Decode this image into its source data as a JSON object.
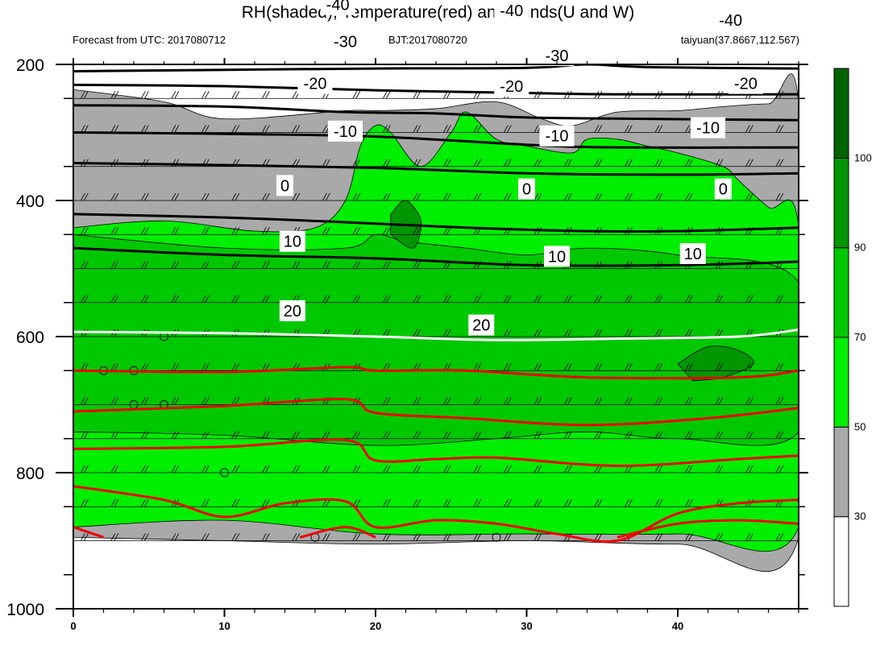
{
  "title": "RH(shaded), Temperature(red) and Winds(U and W)",
  "subtitle_left": "Forecast from UTC: 2017080712",
  "subtitle_center": "BJT:2017080720",
  "subtitle_right": "taiyuan(37.8667,112.567)",
  "chart_data": {
    "type": "heatmap",
    "description_axes": {
      "x": {
        "ticks": [
          0,
          10,
          20,
          30,
          40
        ],
        "range": [
          0,
          48
        ]
      },
      "y": {
        "ticks": [
          200,
          400,
          600,
          800,
          1000
        ],
        "range": [
          200,
          1000
        ],
        "inverted": true
      }
    },
    "colorbar": {
      "levels": [
        30,
        50,
        70,
        90,
        100
      ],
      "colors": [
        "#ffffff",
        "#a9a9a9",
        "#00ee00",
        "#00c800",
        "#009600",
        "#006400"
      ]
    },
    "rh_regions": [
      {
        "level": "30-50",
        "color": "#a9a9a9",
        "points": [
          [
            0,
            237
          ],
          [
            6,
            255
          ],
          [
            10,
            280
          ],
          [
            18,
            268
          ],
          [
            20,
            268
          ],
          [
            24,
            265
          ],
          [
            28,
            255
          ],
          [
            31,
            280
          ],
          [
            33,
            290
          ],
          [
            36,
            270
          ],
          [
            40,
            268
          ],
          [
            43,
            262
          ],
          [
            46,
            258
          ],
          [
            48,
            262
          ],
          [
            48,
            895
          ],
          [
            40,
            905
          ],
          [
            30,
            900
          ],
          [
            20,
            905
          ],
          [
            10,
            900
          ],
          [
            0,
            895
          ]
        ]
      },
      {
        "level": "50-70",
        "color": "#00ee00",
        "points": [
          [
            0,
            440
          ],
          [
            6,
            430
          ],
          [
            12,
            445
          ],
          [
            16,
            440
          ],
          [
            18,
            400
          ],
          [
            19,
            320
          ],
          [
            20,
            290
          ],
          [
            21,
            300
          ],
          [
            23,
            350
          ],
          [
            25,
            300
          ],
          [
            26,
            270
          ],
          [
            28,
            310
          ],
          [
            30,
            320
          ],
          [
            33,
            330
          ],
          [
            34,
            310
          ],
          [
            36,
            310
          ],
          [
            38,
            320
          ],
          [
            40,
            330
          ],
          [
            43,
            350
          ],
          [
            44,
            370
          ],
          [
            46,
            410
          ],
          [
            48,
            440
          ],
          [
            48,
            880
          ],
          [
            40,
            890
          ],
          [
            30,
            890
          ],
          [
            20,
            890
          ],
          [
            10,
            870
          ],
          [
            0,
            880
          ]
        ]
      },
      {
        "level": "70-90",
        "color": "#00c800",
        "points": [
          [
            0,
            450
          ],
          [
            10,
            470
          ],
          [
            18,
            470
          ],
          [
            20,
            450
          ],
          [
            22,
            460
          ],
          [
            26,
            470
          ],
          [
            30,
            480
          ],
          [
            34,
            470
          ],
          [
            40,
            480
          ],
          [
            48,
            520
          ],
          [
            48,
            740
          ],
          [
            40,
            750
          ],
          [
            34,
            740
          ],
          [
            28,
            750
          ],
          [
            20,
            760
          ],
          [
            10,
            745
          ],
          [
            0,
            740
          ]
        ]
      },
      {
        "level": "90-100",
        "color": "#009600",
        "points": [
          [
            21,
            420
          ],
          [
            22,
            400
          ],
          [
            23,
            430
          ],
          [
            22.5,
            470
          ],
          [
            21,
            450
          ]
        ]
      },
      {
        "level": "90-100",
        "color": "#009600",
        "points": [
          [
            40,
            640
          ],
          [
            42,
            615
          ],
          [
            44,
            620
          ],
          [
            45,
            640
          ],
          [
            43,
            660
          ],
          [
            41,
            665
          ]
        ]
      }
    ],
    "contours": [
      {
        "value": -40,
        "color": "#000000",
        "label_text": "-40",
        "points": [
          [
            0,
            210
          ],
          [
            10,
            208
          ],
          [
            20,
            206
          ],
          [
            30,
            205
          ],
          [
            34,
            200
          ],
          [
            38,
            204
          ],
          [
            48,
            206
          ]
        ],
        "labels_at": [
          [
            17.5,
            112
          ]
        ]
      },
      {
        "value": -40,
        "color": "#000000",
        "label_text": "-40",
        "points": [
          [
            0,
            230
          ],
          [
            10,
            232
          ],
          [
            20,
            238
          ],
          [
            30,
            242
          ],
          [
            36,
            244
          ],
          [
            48,
            244
          ]
        ],
        "labels_at": [
          [
            29,
            121
          ],
          [
            43.5,
            135
          ]
        ]
      },
      {
        "value": -30,
        "color": "#000000",
        "label_text": "-30",
        "points": [
          [
            0,
            260
          ],
          [
            10,
            262
          ],
          [
            18,
            270
          ],
          [
            24,
            272
          ],
          [
            30,
            278
          ],
          [
            38,
            280
          ],
          [
            48,
            282
          ]
        ],
        "labels_at": [
          [
            18,
            166
          ],
          [
            32,
            187
          ]
        ]
      },
      {
        "value": -30,
        "color": "#000000",
        "label_text": "-30",
        "points": [
          [
            0,
            300
          ],
          [
            10,
            302
          ],
          [
            20,
            306
          ],
          [
            30,
            318
          ],
          [
            36,
            322
          ],
          [
            48,
            322
          ]
        ],
        "labels_at": []
      },
      {
        "value": -20,
        "color": "#000000",
        "label_text": "-20",
        "points": [
          [
            0,
            345
          ],
          [
            10,
            348
          ],
          [
            20,
            352
          ],
          [
            30,
            360
          ],
          [
            40,
            362
          ],
          [
            48,
            360
          ]
        ],
        "labels_at": [
          [
            16,
            228
          ],
          [
            29,
            232
          ],
          [
            44.5,
            228
          ]
        ]
      },
      {
        "value": -10,
        "color": "#000000",
        "label_text": "-10",
        "points": [
          [
            0,
            420
          ],
          [
            10,
            425
          ],
          [
            18,
            432
          ],
          [
            26,
            440
          ],
          [
            34,
            445
          ],
          [
            40,
            445
          ],
          [
            48,
            440
          ]
        ],
        "labels_at": [
          [
            18,
            298
          ],
          [
            32,
            305
          ],
          [
            42,
            293
          ]
        ]
      },
      {
        "value": -10,
        "color": "#000000",
        "label_text": "-10",
        "points": [
          [
            0,
            470
          ],
          [
            10,
            480
          ],
          [
            20,
            485
          ],
          [
            30,
            495
          ],
          [
            40,
            495
          ],
          [
            48,
            490
          ]
        ],
        "labels_at": []
      },
      {
        "value": 0,
        "color": "#ffffff",
        "label_text": "0",
        "points": [
          [
            0,
            593
          ],
          [
            10,
            595
          ],
          [
            20,
            600
          ],
          [
            28,
            605
          ],
          [
            36,
            603
          ],
          [
            44,
            600
          ],
          [
            48,
            590
          ]
        ],
        "labels_at": [
          [
            14,
            378
          ],
          [
            30,
            383
          ],
          [
            43,
            383
          ]
        ]
      },
      {
        "value": 10,
        "color": "#ee0000",
        "label_text": "10",
        "points": [
          [
            0,
            650
          ],
          [
            10,
            652
          ],
          [
            18,
            645
          ],
          [
            20,
            650
          ],
          [
            26,
            650
          ],
          [
            34,
            660
          ],
          [
            44,
            660
          ],
          [
            48,
            650
          ]
        ],
        "labels_at": []
      },
      {
        "value": 10,
        "color": "#ee0000",
        "label_text": "10",
        "points": [
          [
            0,
            710
          ],
          [
            10,
            702
          ],
          [
            18,
            692
          ],
          [
            20,
            712
          ],
          [
            26,
            720
          ],
          [
            34,
            730
          ],
          [
            42,
            720
          ],
          [
            48,
            705
          ]
        ],
        "labels_at": [
          [
            14.5,
            460
          ],
          [
            32,
            482
          ],
          [
            41,
            478
          ]
        ]
      },
      {
        "value": 10,
        "color": "#ee0000",
        "label_text": "10",
        "points": [
          [
            0,
            765
          ],
          [
            10,
            762
          ],
          [
            18,
            752
          ],
          [
            20,
            782
          ],
          [
            24,
            780
          ],
          [
            28,
            778
          ],
          [
            36,
            790
          ],
          [
            44,
            780
          ],
          [
            48,
            775
          ]
        ],
        "labels_at": []
      },
      {
        "value": 20,
        "color": "#ee0000",
        "label_text": "20",
        "points": [
          [
            0,
            820
          ],
          [
            6,
            840
          ],
          [
            10,
            865
          ],
          [
            14,
            845
          ],
          [
            18,
            842
          ],
          [
            20,
            880
          ],
          [
            24,
            870
          ],
          [
            28,
            875
          ],
          [
            32,
            890
          ],
          [
            36,
            900
          ],
          [
            40,
            860
          ],
          [
            44,
            845
          ],
          [
            48,
            840
          ]
        ],
        "labels_at": [
          [
            14.5,
            562
          ],
          [
            27,
            583
          ]
        ]
      },
      {
        "value": 20,
        "color": "#ee0000",
        "label_text": "20",
        "points": [
          [
            0,
            880
          ],
          [
            2,
            895
          ]
        ],
        "labels_at": []
      },
      {
        "value": 20,
        "color": "#ee0000",
        "label_text": "20",
        "points": [
          [
            15,
            895
          ],
          [
            18,
            880
          ],
          [
            20,
            895
          ]
        ],
        "labels_at": []
      },
      {
        "value": 20,
        "color": "#ee0000",
        "label_text": "20",
        "points": [
          [
            36,
            895
          ],
          [
            40,
            875
          ],
          [
            44,
            870
          ],
          [
            48,
            875
          ]
        ],
        "labels_at": []
      }
    ],
    "calm_markers": [
      [
        2,
        650
      ],
      [
        4,
        650
      ],
      [
        4,
        700
      ],
      [
        6,
        700
      ],
      [
        6,
        600
      ],
      [
        10,
        800
      ],
      [
        16,
        895
      ],
      [
        28,
        895
      ]
    ],
    "flag_barb_rows": [
      245,
      270,
      295
    ]
  }
}
